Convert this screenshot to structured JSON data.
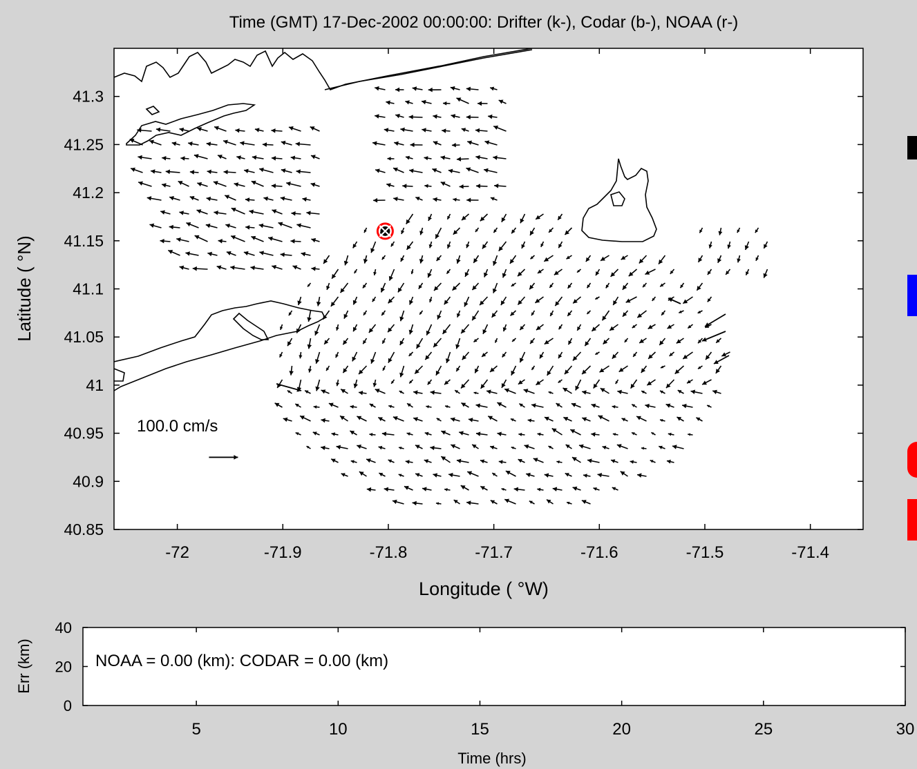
{
  "chart_data": [
    {
      "type": "quiver",
      "title": "Time (GMT) 17-Dec-2002 00:00:00: Drifter (k-), Codar (b-), NOAA (r-)",
      "xlabel": "Longitude ( °W)",
      "ylabel": "Latitude ( °N)",
      "xlim": [
        -72.06,
        -71.35
      ],
      "ylim": [
        40.85,
        41.35
      ],
      "x_ticks": [
        -72,
        -71.9,
        -71.8,
        -71.7,
        -71.6,
        -71.5,
        -71.4
      ],
      "x_tick_labels": [
        "-72",
        "-71.9",
        "-71.8",
        "-71.7",
        "-71.6",
        "-71.5",
        "-71.4"
      ],
      "y_ticks": [
        40.85,
        40.9,
        40.95,
        41.0,
        41.05,
        41.1,
        41.15,
        41.2,
        41.25,
        41.3
      ],
      "y_tick_labels": [
        "40.85",
        "40.9",
        "40.95",
        "41",
        "41.05",
        "41.1",
        "41.15",
        "41.2",
        "41.25",
        "41.3"
      ],
      "scale_label": "100.0 cm/s",
      "scale_vector": {
        "lon": -71.97,
        "lat": 40.925,
        "u_cm_s": 100,
        "v_cm_s": 0
      },
      "drifter_position": {
        "lon": -71.803,
        "lat": 41.16
      },
      "grid": false,
      "colors": {
        "drifter": "#000000",
        "codar": "#0000ff",
        "noaa": "#ff0000",
        "land": "#ffffff",
        "axes_bg": "#ffffff"
      }
    },
    {
      "type": "line",
      "annotation": "NOAA = 0.00 (km): CODAR = 0.00 (km)",
      "xlabel": "Time (hrs)",
      "ylabel": "Err (km)",
      "xlim": [
        1,
        30
      ],
      "ylim": [
        0,
        40
      ],
      "x_ticks": [
        5,
        10,
        15,
        20,
        25,
        30
      ],
      "x_tick_labels": [
        "5",
        "10",
        "15",
        "20",
        "25",
        "30"
      ],
      "y_ticks": [
        0,
        20,
        40
      ],
      "y_tick_labels": [
        "0",
        "20",
        "40"
      ],
      "series": []
    }
  ],
  "legend_markers": [
    {
      "color": "#000000"
    },
    {
      "color": "#0000ff"
    },
    {
      "color": "#ff0000"
    }
  ]
}
